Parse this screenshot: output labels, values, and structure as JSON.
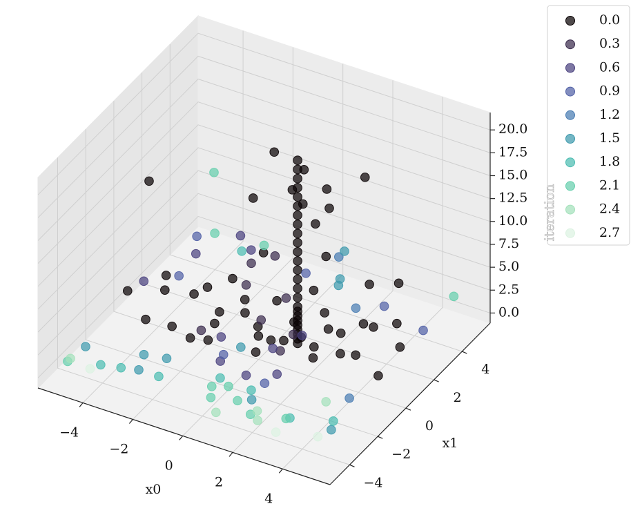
{
  "chart_data": {
    "type": "scatter3d",
    "x_label": "x0",
    "y_label": "x1",
    "z_label": "iteration",
    "xlim": [
      -5.8,
      5.9
    ],
    "ylim": [
      -5.4,
      6.0
    ],
    "zlim": [
      -1.1,
      21.9
    ],
    "xticks": [
      {
        "value": -4,
        "label": "−4"
      },
      {
        "value": -2,
        "label": "−2"
      },
      0,
      2,
      4
    ],
    "yticks": [
      {
        "value": -4,
        "label": "−4"
      },
      {
        "value": -2,
        "label": "−2"
      },
      0,
      2,
      4
    ],
    "zticks": [
      {
        "value": 0,
        "label": "0.0"
      },
      {
        "value": 2.5,
        "label": "2.5"
      },
      {
        "value": 5,
        "label": "5.0"
      },
      {
        "value": 7.5,
        "label": "7.5"
      },
      {
        "value": 10,
        "label": "10.0"
      },
      {
        "value": 12.5,
        "label": "12.5"
      },
      {
        "value": 15,
        "label": "15.0"
      },
      {
        "value": 17.5,
        "label": "17.5"
      },
      {
        "value": 20,
        "label": "20.0"
      }
    ],
    "grid": true,
    "series": [
      {
        "name": "0.0",
        "color": "#0b0405",
        "x": [
          1,
          1,
          1,
          1,
          1,
          1,
          1,
          1,
          1,
          1,
          1,
          1,
          1,
          1,
          1,
          1,
          1,
          1,
          1,
          1,
          1,
          1,
          1,
          1,
          1,
          0.8,
          1.2,
          1.1,
          0.9,
          1.2,
          -4.5,
          -0.5,
          1.1,
          1.9,
          1.2,
          0.7,
          -1.4,
          -1.1,
          0.9,
          -5.0,
          -5.7,
          -4.3,
          -3.3,
          -2.4,
          -1.8,
          -3.6,
          -3.4,
          -2.9,
          -1.9,
          -1.5,
          -2.1,
          -0.7,
          0.0,
          0.1,
          -0.9,
          -0.1,
          0.9,
          1.5,
          2.0,
          1.4,
          2.8,
          2.4,
          2.8,
          3.4,
          4.2,
          4.4,
          3.1,
          2.6,
          1.6,
          1.9,
          0.5,
          -0.4,
          -2.3,
          -4.6
        ],
        "y": [
          1,
          1,
          1,
          1,
          1,
          1,
          1,
          1,
          1,
          1,
          1,
          1,
          1,
          1,
          1,
          1,
          1,
          1,
          1,
          1,
          1,
          1,
          1,
          1,
          1,
          1.1,
          0.9,
          1.2,
          0.8,
          1.1,
          0.2,
          2.0,
          2.9,
          4.2,
          2.9,
          2.8,
          2.1,
          2.3,
          3.2,
          2.3,
          0.8,
          -0.4,
          -0.3,
          -0.6,
          -0.4,
          1.8,
          2.4,
          3.3,
          2.4,
          1.7,
          0.6,
          1.2,
          -0.2,
          0.7,
          2.9,
          4.1,
          3.1,
          2.3,
          2.3,
          5.4,
          5.0,
          3.2,
          3.2,
          3.8,
          2.6,
          0.7,
          1.4,
          1.2,
          1.1,
          0.5,
          0.9,
          0.7,
          1.3,
          1.5
        ],
        "z": [
          0,
          0.5,
          1,
          1.5,
          2,
          2.5,
          3,
          3.5,
          4,
          5,
          6,
          7,
          8,
          9,
          10,
          11,
          12,
          13,
          14,
          15,
          16,
          17,
          18,
          19,
          20,
          2,
          1,
          15,
          17,
          19,
          14,
          18,
          14,
          14,
          12,
          10,
          12,
          6,
          6,
          0,
          0,
          0,
          0,
          0,
          0,
          0,
          0,
          0,
          0,
          0,
          0,
          0,
          0,
          0,
          0,
          0,
          0,
          0,
          0,
          0,
          2,
          0,
          0,
          0,
          0,
          0,
          0,
          0,
          0,
          0,
          0,
          0,
          0,
          0
        ]
      },
      {
        "name": "0.3",
        "color": "#3b2c4e",
        "x": [
          -1.7,
          -1.2,
          -0.7,
          -2.3,
          -0.8,
          0.6,
          -2.3,
          0.7
        ],
        "y": [
          2.5,
          3.3,
          3.2,
          3.2,
          1.6,
          1.4,
          0.0,
          0.3
        ],
        "z": [
          4,
          4,
          0,
          0,
          0,
          0,
          0,
          0
        ]
      },
      {
        "name": "0.6",
        "color": "#4b427f",
        "x": [
          -5.5,
          -4.2,
          -2.1,
          -2.3,
          -1.5,
          -0.8,
          0.4,
          1.3,
          0.4,
          0.9
        ],
        "y": [
          1.6,
          3.0,
          3.2,
          2.8,
          0.0,
          -1.3,
          -1.6,
          -1.0,
          0.3,
          1.5
        ],
        "z": [
          0,
          2,
          4,
          6,
          0,
          0,
          0,
          0,
          0,
          0
        ]
      },
      {
        "name": "0.9",
        "color": "#5261a6",
        "x": [
          -3.6,
          -4.6,
          2.5,
          4.4,
          1.2,
          -0.9,
          -0.3
        ],
        "y": [
          2.0,
          2.5,
          4.5,
          3.9,
          -1.7,
          -0.9,
          3.9
        ],
        "z": [
          6,
          0,
          0,
          0,
          0,
          0,
          2
        ]
      },
      {
        "name": "1.2",
        "color": "#4a7db3",
        "x": [
          1.3,
          1.7,
          4.2
        ],
        "y": [
          3.4,
          3.9,
          -1.0
        ],
        "z": [
          6,
          0,
          0
        ]
      },
      {
        "name": "1.5",
        "color": "#3f9aad",
        "x": [
          1.3,
          0.9,
          0.5,
          -0.6,
          -3.3,
          -2.5,
          -3.0,
          1.3,
          4.6,
          -5.3
        ],
        "y": [
          3.8,
          4.2,
          4.8,
          -0.2,
          -2.3,
          -2.1,
          -3.2,
          -2.8,
          -3.0,
          -2.9
        ],
        "z": [
          6,
          2,
          0,
          0,
          0,
          0,
          0,
          0,
          0,
          0
        ]
      },
      {
        "name": "1.8",
        "color": "#4cbcb1",
        "x": [
          -1.8,
          -3.6,
          -4.3,
          -2.2,
          -0.3,
          1.0,
          3.0,
          4.4
        ],
        "y": [
          2.0,
          -3.4,
          -3.6,
          -3.2,
          -2.2,
          -2.3,
          -3.1,
          -2.5
        ],
        "z": [
          6,
          0,
          0,
          0,
          0,
          0,
          0,
          0
        ]
      },
      {
        "name": "2.1",
        "color": "#66cfad",
        "x": [
          -2.8,
          -2.6,
          5.4,
          -1.3,
          -0.3,
          0.0,
          0.2,
          0.9,
          1.7,
          2.9,
          -5.4
        ],
        "y": [
          1.8,
          1.5,
          4.3,
          2.7,
          -2.8,
          -3.4,
          -2.5,
          -3.1,
          -3.6,
          -3.2,
          -4.0
        ],
        "z": [
          14,
          8,
          4,
          6,
          0,
          0,
          0,
          0,
          0,
          0,
          0
        ]
      },
      {
        "name": "2.4",
        "color": "#a4e1bb",
        "x": [
          0.6,
          1.8,
          2.1,
          3.6,
          -5.4
        ],
        "y": [
          -4.1,
          -3.3,
          -3.8,
          -1.6,
          -3.8
        ],
        "z": [
          0,
          0,
          0,
          0,
          0
        ]
      },
      {
        "name": "2.7",
        "color": "#dcf2e2",
        "x": [
          3.0,
          4.4,
          -4.5
        ],
        "y": [
          -4.1,
          -3.6,
          -4.0
        ],
        "z": [
          0,
          0,
          0
        ]
      }
    ]
  }
}
